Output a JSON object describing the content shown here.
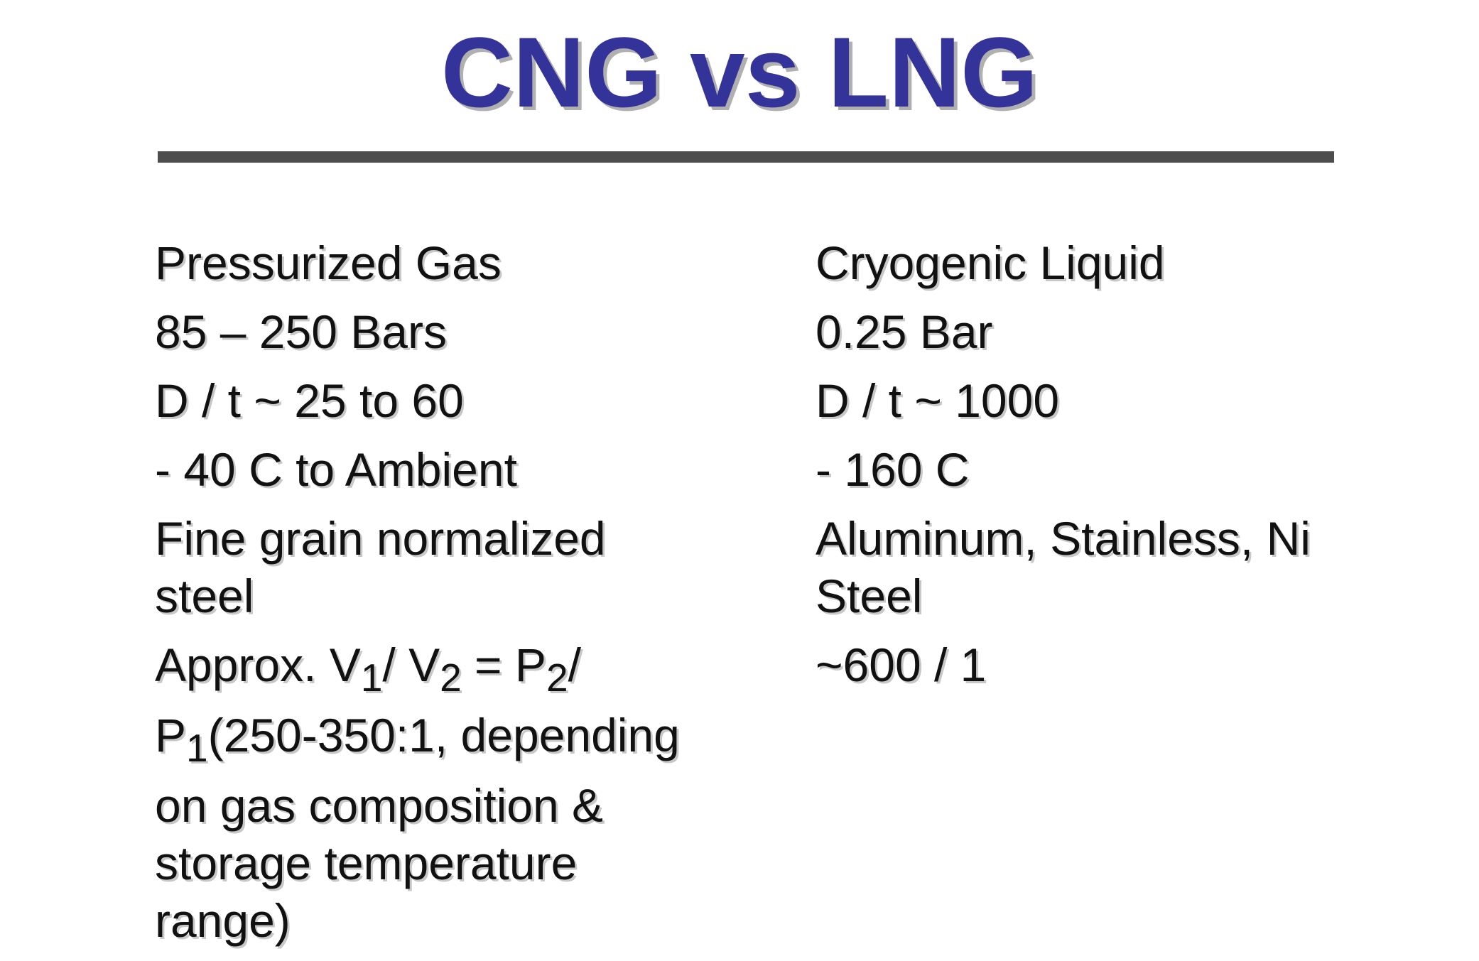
{
  "title": "CNG vs LNG",
  "left": {
    "items": [
      "Pressurized Gas",
      "85 – 250 Bars",
      "D / t ~ 25 to 60",
      "- 40 C to Ambient",
      "Fine grain normalized steel"
    ],
    "formula": [
      {
        "text": "Approx. V"
      },
      {
        "sub": "1"
      },
      {
        "text": "/ V"
      },
      {
        "sub": "2"
      },
      {
        "text": "  =  P"
      },
      {
        "sub": "2"
      },
      {
        "text": "/ P"
      },
      {
        "sub": "1"
      }
    ],
    "note": "(250-350:1, depending on gas composition & storage temperature range)"
  },
  "right": {
    "items": [
      "Cryogenic Liquid",
      "0.25 Bar",
      "D / t ~ 1000",
      "- 160 C",
      "Aluminum, Stainless, Ni Steel",
      "~600 / 1"
    ]
  }
}
